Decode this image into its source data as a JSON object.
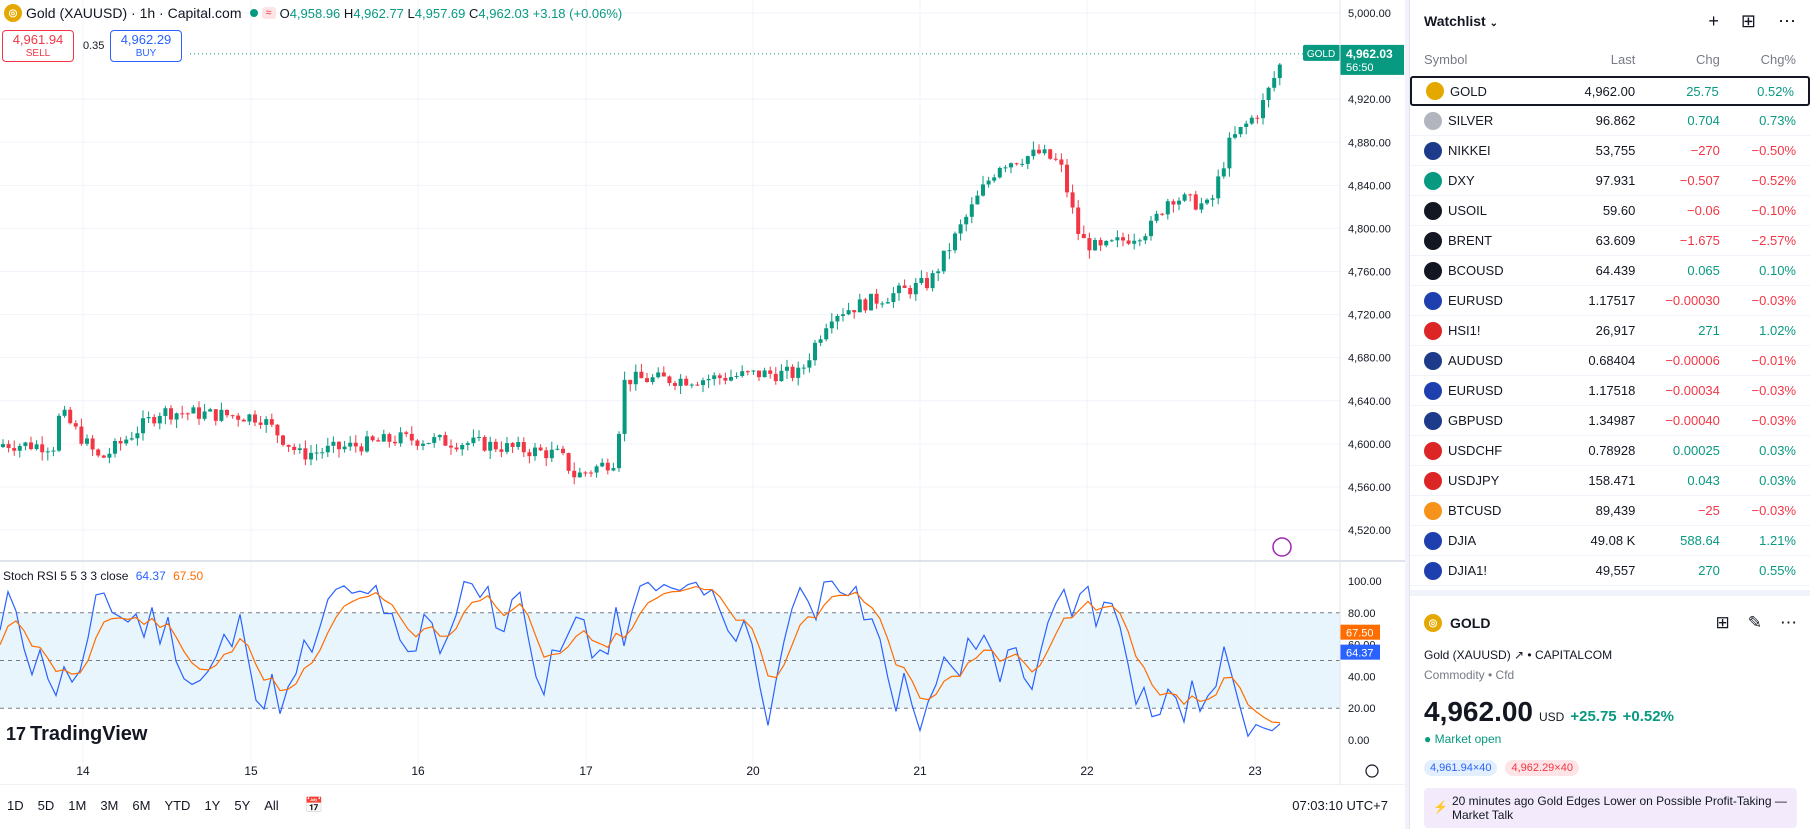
{
  "header": {
    "symbol_title": "Gold (XAUUSD) · 1h · Capital.com",
    "ohlc": {
      "o_label": "O",
      "o": "4,958.96",
      "h_label": "H",
      "h": "4,962.77",
      "l_label": "L",
      "l": "4,957.69",
      "c_label": "C",
      "c": "4,962.03",
      "change": "+3.18 (+0.06%)"
    },
    "sell_price": "4,961.94",
    "sell_label": "SELL",
    "buy_price": "4,962.29",
    "buy_label": "BUY",
    "spread": "0.35"
  },
  "price_axis": {
    "ticks": [
      "5,000.00",
      "4,920.00",
      "4,880.00",
      "4,840.00",
      "4,800.00",
      "4,760.00",
      "4,720.00",
      "4,680.00",
      "4,640.00",
      "4,600.00",
      "4,560.00",
      "4,520.00"
    ],
    "last_label": "GOLD",
    "last_price": "4,962.03",
    "countdown": "56:50"
  },
  "rsi": {
    "label": "Stoch RSI 5 5 3 3 close",
    "k_value": "64.37",
    "d_value": "67.50",
    "ticks": [
      "100.00",
      "80.00",
      "60.00",
      "40.00",
      "20.00",
      "0.00"
    ],
    "k_color": "#2962ff",
    "d_color": "#ff6d00"
  },
  "time_axis": {
    "labels": [
      "14",
      "15",
      "16",
      "17",
      "20",
      "21",
      "22",
      "23"
    ]
  },
  "timeframes": [
    "1D",
    "5D",
    "1M",
    "3M",
    "6M",
    "YTD",
    "1Y",
    "5Y",
    "All"
  ],
  "clock": "07:03:10 UTC+7",
  "logo_text": "TradingView",
  "colors": {
    "up": "#089981",
    "down": "#f23645",
    "accent": "#2962ff"
  },
  "watchlist": {
    "title": "Watchlist",
    "columns": {
      "symbol": "Symbol",
      "last": "Last",
      "chg": "Chg",
      "pct": "Chg%"
    },
    "rows": [
      {
        "sym": "GOLD",
        "last": "4,962.00",
        "chg": "25.75",
        "pct": "0.52%",
        "dir": "pos",
        "icon_color": "#e5a800",
        "icon": "coin-icon"
      },
      {
        "sym": "SILVER",
        "last": "96.862",
        "chg": "0.704",
        "pct": "0.73%",
        "dir": "pos",
        "icon_color": "#b2b5be",
        "icon": "coin-icon"
      },
      {
        "sym": "NIKKEI",
        "last": "53,755",
        "chg": "−270",
        "pct": "−0.50%",
        "dir": "neg",
        "icon_color": "#1e3a8a",
        "icon": "index-icon"
      },
      {
        "sym": "DXY",
        "last": "97.931",
        "chg": "−0.507",
        "pct": "−0.52%",
        "dir": "neg",
        "icon_color": "#089981",
        "icon": "dollar-icon"
      },
      {
        "sym": "USOIL",
        "last": "59.60",
        "chg": "−0.06",
        "pct": "−0.10%",
        "dir": "neg",
        "icon_color": "#131722",
        "icon": "oil-drop-icon"
      },
      {
        "sym": "BRENT",
        "last": "63.609",
        "chg": "−1.675",
        "pct": "−2.57%",
        "dir": "neg",
        "icon_color": "#131722",
        "icon": "oil-drop-icon"
      },
      {
        "sym": "BCOUSD",
        "last": "64.439",
        "chg": "0.065",
        "pct": "0.10%",
        "dir": "pos",
        "icon_color": "#131722",
        "icon": "oil-drop-icon"
      },
      {
        "sym": "EURUSD",
        "last": "1.17517",
        "chg": "−0.00030",
        "pct": "−0.03%",
        "dir": "neg",
        "icon_color": "#1e40af",
        "icon": "flag-icon"
      },
      {
        "sym": "HSI1!",
        "last": "26,917",
        "chg": "271",
        "pct": "1.02%",
        "dir": "pos",
        "icon_color": "#dc2626",
        "icon": "index-icon"
      },
      {
        "sym": "AUDUSD",
        "last": "0.68404",
        "chg": "−0.00006",
        "pct": "−0.01%",
        "dir": "neg",
        "icon_color": "#1e3a8a",
        "icon": "flag-icon"
      },
      {
        "sym": "EURUSD",
        "last": "1.17518",
        "chg": "−0.00034",
        "pct": "−0.03%",
        "dir": "neg",
        "icon_color": "#1e40af",
        "icon": "flag-icon"
      },
      {
        "sym": "GBPUSD",
        "last": "1.34987",
        "chg": "−0.00040",
        "pct": "−0.03%",
        "dir": "neg",
        "icon_color": "#1e3a8a",
        "icon": "flag-icon"
      },
      {
        "sym": "USDCHF",
        "last": "0.78928",
        "chg": "0.00025",
        "pct": "0.03%",
        "dir": "pos",
        "icon_color": "#dc2626",
        "icon": "flag-icon"
      },
      {
        "sym": "USDJPY",
        "last": "158.471",
        "chg": "0.043",
        "pct": "0.03%",
        "dir": "pos",
        "icon_color": "#dc2626",
        "icon": "flag-icon"
      },
      {
        "sym": "BTCUSD",
        "last": "89,439",
        "chg": "−25",
        "pct": "−0.03%",
        "dir": "neg",
        "icon_color": "#f7931a",
        "icon": "bitcoin-icon"
      },
      {
        "sym": "DJIA",
        "last": "49.08 K",
        "chg": "588.64",
        "pct": "1.21%",
        "dir": "pos",
        "icon_color": "#1e40af",
        "icon": "flag-icon"
      },
      {
        "sym": "DJIA1!",
        "last": "49,557",
        "chg": "270",
        "pct": "0.55%",
        "dir": "pos",
        "icon_color": "#1e40af",
        "icon": "flag-icon"
      }
    ]
  },
  "detail": {
    "symbol": "GOLD",
    "name": "Gold (XAUUSD)",
    "exchange": "CAPITALCOM",
    "category": "Commodity • Cfd",
    "price": "4,962.00",
    "currency": "USD",
    "change": "+25.75",
    "change_pct": "+0.52%",
    "status": "Market open",
    "bid_chip": "4,961.94×40",
    "ask_chip": "4,962.29×40",
    "news_time": "20 minutes ago",
    "news_text": "Gold Edges Lower on Possible Profit-Taking — Market Talk"
  }
}
